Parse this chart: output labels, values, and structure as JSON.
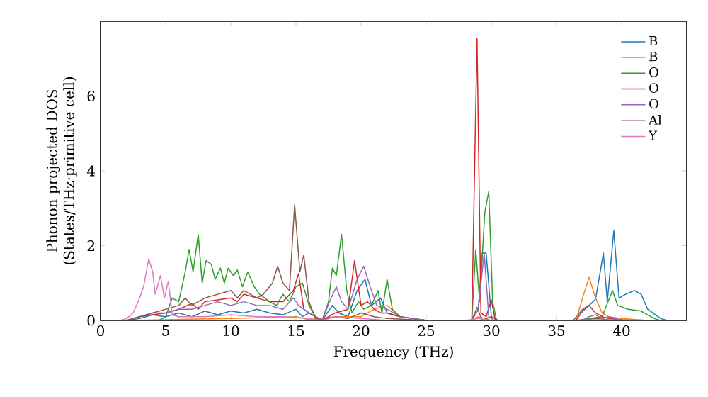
{
  "chart_data": {
    "type": "line",
    "xlabel": "Frequency (THz)",
    "ylabel": "Phonon projected DOS (States/THz·primitive cell)",
    "xlim": [
      0,
      45
    ],
    "ylim": [
      0,
      8
    ],
    "xticks": [
      0,
      5,
      10,
      15,
      20,
      25,
      30,
      35,
      40
    ],
    "yticks": [
      0,
      2,
      4,
      6
    ],
    "legend": "top right",
    "series": [
      {
        "name": "B",
        "color": "#1f77b4",
        "x": [
          2,
          3,
          4,
          5,
          6,
          7,
          8,
          9,
          10,
          11,
          12,
          13,
          14,
          15,
          15.5,
          16,
          17,
          17.8,
          18.3,
          19,
          19.7,
          20.3,
          20.8,
          21.5,
          22,
          23,
          24,
          25,
          28.5,
          29,
          29.3,
          29.6,
          30,
          30.5,
          36.3,
          37,
          37.5,
          38,
          38.6,
          38.9,
          39.4,
          39.8,
          40.3,
          41,
          41.5,
          42,
          43,
          43.5
        ],
        "values": [
          0,
          0.05,
          0.15,
          0.1,
          0.2,
          0.1,
          0.25,
          0.15,
          0.25,
          0.2,
          0.3,
          0.2,
          0.15,
          0.3,
          0.1,
          0.2,
          0,
          0.4,
          0.2,
          0.1,
          0.8,
          1.1,
          0.4,
          0.6,
          0.2,
          0.1,
          0.05,
          0,
          0,
          0.3,
          1.8,
          1.8,
          0.1,
          0,
          0,
          0.3,
          0.4,
          0.57,
          1.8,
          0.5,
          2.4,
          0.6,
          0.7,
          0.8,
          0.7,
          0.3,
          0.05,
          0
        ]
      },
      {
        "name": "B",
        "color": "#ff7f0e",
        "x": [
          2,
          5,
          10,
          15,
          16,
          18,
          20,
          21,
          22,
          23,
          25,
          28.5,
          29,
          29.5,
          30,
          36.5,
          37,
          37.5,
          38,
          38.5,
          39,
          40,
          42
        ],
        "values": [
          0,
          0.02,
          0.05,
          0.1,
          0.02,
          0.1,
          0.1,
          0.3,
          0.4,
          0.1,
          0,
          0,
          0.1,
          0.05,
          0,
          0,
          0.6,
          1.15,
          0.6,
          0.2,
          0.1,
          0.05,
          0
        ]
      },
      {
        "name": "O",
        "color": "#2ca02c",
        "x": [
          4.5,
          5,
          5.5,
          6,
          6.5,
          6.8,
          7.1,
          7.5,
          7.8,
          8.1,
          8.5,
          8.8,
          9.2,
          9.5,
          9.8,
          10.2,
          10.5,
          10.9,
          11.3,
          11.8,
          12.2,
          12.6,
          13,
          13.5,
          14,
          14.5,
          15,
          15.5,
          16,
          16.5,
          17,
          17.5,
          17.8,
          18.1,
          18.5,
          18.9,
          19.3,
          19.8,
          20.2,
          20.8,
          21.3,
          21.6,
          22,
          22.4,
          23,
          24,
          25,
          28.5,
          28.8,
          29.1,
          29.5,
          29.8,
          30.1,
          30.4,
          36.5,
          37.5,
          38.5,
          39.3,
          39.7,
          40.5,
          41.5,
          42.5,
          43
        ],
        "values": [
          0,
          0.1,
          0.6,
          0.5,
          1.3,
          1.9,
          1.3,
          2.3,
          1.0,
          1.6,
          1.5,
          1.1,
          1.4,
          1.0,
          1.4,
          1.2,
          1.35,
          0.9,
          1.3,
          0.9,
          0.7,
          0.6,
          0.5,
          0.4,
          0.7,
          0.5,
          0.9,
          1.0,
          0.4,
          0.1,
          0,
          0.5,
          1.4,
          1.2,
          2.3,
          0.8,
          0.2,
          0.5,
          0.3,
          0.4,
          0.8,
          0.2,
          1.1,
          0.3,
          0.1,
          0.05,
          0,
          0,
          1.9,
          0.5,
          2.9,
          3.45,
          0.5,
          0,
          0,
          0.05,
          0.1,
          0.8,
          0.4,
          0.3,
          0.25,
          0.05,
          0
        ]
      },
      {
        "name": "O",
        "color": "#d62728",
        "x": [
          2,
          3,
          4,
          5,
          6,
          7,
          7.5,
          8,
          9,
          10,
          10.5,
          11,
          12,
          13,
          14,
          14.8,
          15.2,
          15.6,
          16,
          17,
          18,
          19,
          19.5,
          20,
          20.5,
          21,
          21.5,
          22,
          23,
          24,
          25,
          28.5,
          28.9,
          29.2,
          29.6,
          30,
          30.3,
          36.5,
          37,
          37.5,
          38,
          38.5,
          39,
          40,
          41
        ],
        "values": [
          0,
          0.1,
          0.15,
          0.2,
          0.3,
          0.45,
          0.3,
          0.5,
          0.55,
          0.6,
          0.5,
          0.7,
          0.6,
          0.5,
          0.5,
          0.8,
          1.25,
          0.3,
          0.2,
          0,
          0.2,
          0.3,
          1.6,
          0.4,
          0.5,
          0.3,
          0.2,
          0.2,
          0.1,
          0.05,
          0,
          0,
          7.55,
          0.2,
          0.1,
          0.55,
          0,
          0,
          0.25,
          0.4,
          0.2,
          0.1,
          0.05,
          0.02,
          0
        ]
      },
      {
        "name": "O",
        "color": "#9467bd",
        "x": [
          2,
          3,
          4,
          5,
          6,
          7,
          8,
          9,
          10,
          11,
          12,
          13,
          14,
          14.8,
          15.2,
          16,
          17,
          17.7,
          18.1,
          18.5,
          19,
          19.7,
          20.2,
          20.7,
          21.2,
          22,
          23,
          25,
          28.5,
          29,
          29.2,
          29.45,
          29.8,
          30.2,
          37,
          37.5,
          38,
          38.5,
          39,
          40
        ],
        "values": [
          0,
          0.1,
          0.2,
          0.2,
          0.3,
          0.3,
          0.4,
          0.5,
          0.4,
          0.5,
          0.4,
          0.4,
          0.3,
          0.6,
          0.4,
          0.2,
          0,
          0.6,
          0.9,
          0.5,
          0.3,
          1.1,
          1.45,
          0.9,
          0.4,
          0.3,
          0.1,
          0,
          0,
          0.3,
          1.0,
          1.8,
          0.1,
          0,
          0,
          0.1,
          0.15,
          0.05,
          0.1,
          0
        ]
      },
      {
        "name": "Al",
        "color": "#8c564b",
        "x": [
          2,
          3,
          4,
          5,
          6,
          6.5,
          7,
          8,
          9,
          10,
          10.5,
          11,
          12,
          12.5,
          13.2,
          13.6,
          14,
          14.5,
          14.9,
          15.3,
          15.6,
          16,
          16.5,
          17,
          18,
          19,
          20,
          21,
          22,
          25,
          28.5,
          28.9,
          29.3,
          30,
          30.5,
          37,
          38,
          39,
          40
        ],
        "values": [
          0,
          0.1,
          0.2,
          0.3,
          0.4,
          0.6,
          0.4,
          0.6,
          0.7,
          0.8,
          0.6,
          0.8,
          0.6,
          0.7,
          1.0,
          1.45,
          1.0,
          0.8,
          3.1,
          1.3,
          1.75,
          0.5,
          0.05,
          0,
          0.1,
          0.05,
          0.2,
          0.1,
          0.05,
          0,
          0,
          0.35,
          0,
          0.1,
          0,
          0,
          0.05,
          0.02,
          0
        ]
      },
      {
        "name": "Y",
        "color": "#e377c2",
        "x": [
          1.5,
          2,
          2.5,
          3,
          3.3,
          3.7,
          4.0,
          4.2,
          4.6,
          4.9,
          5.2,
          5.5,
          6,
          8,
          10,
          12,
          14,
          16,
          17,
          18,
          20,
          22,
          28,
          29,
          30,
          37,
          38,
          40
        ],
        "values": [
          0,
          0.05,
          0.2,
          0.6,
          0.9,
          1.65,
          1.3,
          0.7,
          1.2,
          0.6,
          1.05,
          0.15,
          0.1,
          0.1,
          0.15,
          0.1,
          0.1,
          0.05,
          0,
          0.1,
          0.05,
          0,
          0,
          0.05,
          0,
          0,
          0.02,
          0
        ]
      }
    ]
  }
}
